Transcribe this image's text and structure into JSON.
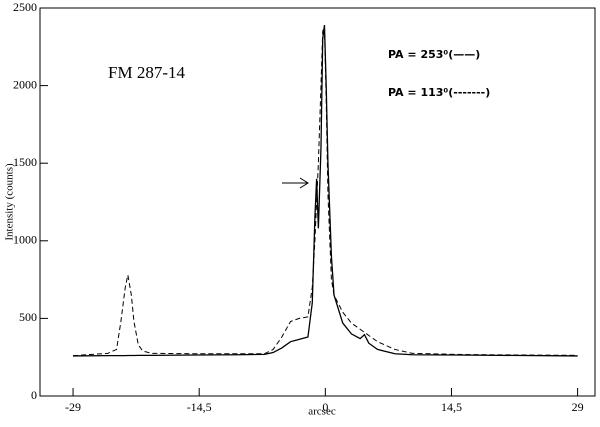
{
  "chart_data": {
    "type": "line",
    "annotation": "FM 287-14",
    "x_label": "arcsec",
    "y_label": "Intensity (counts)",
    "x": [
      -29,
      -25,
      -24,
      -23.5,
      -23,
      -22.7,
      -22.3,
      -22,
      -21.5,
      -21,
      -20,
      -15,
      -10,
      -7,
      -6,
      -5,
      -4,
      -3,
      -2,
      -1.5,
      -1.2,
      -1,
      -0.8,
      -0.5,
      -0.3,
      -0.1,
      0.1,
      0.3,
      0.7,
      1,
      2,
      3,
      4,
      4.5,
      5,
      6,
      8,
      10,
      15,
      20,
      29
    ],
    "series": [
      {
        "name": "PA = 253⁰(——)",
        "color": "#000000",
        "line_style": "solid",
        "values": [
          258,
          260,
          260,
          260,
          260,
          261,
          261,
          261,
          262,
          262,
          262,
          264,
          266,
          268,
          280,
          310,
          350,
          365,
          380,
          600,
          1150,
          1400,
          1080,
          1600,
          2300,
          2390,
          2000,
          1500,
          900,
          650,
          470,
          400,
          370,
          395,
          340,
          300,
          272,
          266,
          264,
          262,
          258
        ]
      },
      {
        "name": "PA = 113⁰(-------)",
        "color": "#000000",
        "line_style": "dashed",
        "values": [
          260,
          275,
          300,
          480,
          700,
          780,
          650,
          480,
          330,
          290,
          275,
          272,
          272,
          272,
          300,
          380,
          480,
          500,
          510,
          700,
          1000,
          1250,
          1500,
          2000,
          2350,
          2380,
          1900,
          1300,
          750,
          650,
          540,
          470,
          430,
          410,
          390,
          350,
          300,
          275,
          268,
          265,
          262
        ]
      }
    ],
    "xlim": [
      -32.8,
      31
    ],
    "ylim": [
      0,
      2500
    ],
    "xticks": [
      -29,
      {
        "value": -14.5,
        "label": "-14,5"
      },
      0,
      {
        "value": 14.5,
        "label": "14,5"
      },
      29
    ],
    "yticks": [
      0,
      500,
      1000,
      1500,
      2000,
      2500
    ],
    "grid": false
  }
}
